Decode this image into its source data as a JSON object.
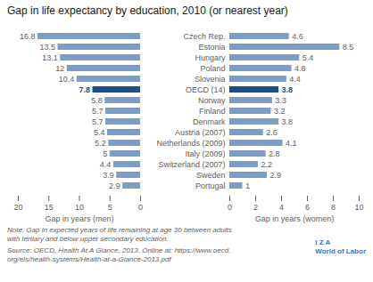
{
  "chart_data": [
    {
      "type": "bar",
      "orientation": "horizontal",
      "title": "Gap in life expectancy by education, 2010 (or nearest year)",
      "categories": [
        "Czech Rep.",
        "Estonia",
        "Hungary",
        "Poland",
        "Slovenia",
        "OECD (14)",
        "Norway",
        "Finland",
        "Denmark",
        "Austria (2007)",
        "Netherlands (2009)",
        "Italy (2009)",
        "Switzerland (2007)",
        "Sweden",
        "Portugal"
      ],
      "values": [
        16.8,
        13.5,
        13.1,
        12.0,
        10.4,
        7.8,
        5.8,
        5.7,
        5.7,
        5.4,
        5.2,
        5.0,
        4.4,
        3.9,
        2.9
      ],
      "colors": [
        "#7b9dc6",
        "#7b9dc6",
        "#7b9dc6",
        "#7b9dc6",
        "#7b9dc6",
        "#1a4f8a",
        "#7b9dc6",
        "#7b9dc6",
        "#7b9dc6",
        "#7b9dc6",
        "#7b9dc6",
        "#7b9dc6",
        "#7b9dc6",
        "#7b9dc6",
        "#7b9dc6"
      ],
      "xlabel": "Gap in years (men)",
      "xlim": [
        20,
        0
      ],
      "xticks": [
        20,
        15,
        10,
        5,
        0
      ],
      "data_labels": true,
      "tick_labels": "x",
      "annotations": [
        "Note: Gap in expected years of life remaining at age 30 between adults\nwith tertiary and below upper secondary education.",
        "Source: OECD, Health At A Glance, 2013. Online at: https://www.oecd.\norg/els/health-systems/Health-at-a-Glance-2013.pdf",
        "I Z A",
        "World of Labor"
      ]
    },
    {
      "type": "bar",
      "orientation": "horizontal",
      "categories": [
        "Czech Rep.",
        "Estonia",
        "Hungary",
        "Poland",
        "Slovenia",
        "OECD (14)",
        "Norway",
        "Finland",
        "Denmark",
        "Austria (2007)",
        "Netherlands (2009)",
        "Italy (2009)",
        "Switzerland (2007)",
        "Sweden",
        "Portugal"
      ],
      "values": [
        4.6,
        8.5,
        5.4,
        4.8,
        4.4,
        3.8,
        3.3,
        3.2,
        3.8,
        2.6,
        4.1,
        2.8,
        2.2,
        2.9,
        1.0
      ],
      "colors": [
        "#7b9dc6",
        "#7b9dc6",
        "#7b9dc6",
        "#7b9dc6",
        "#7b9dc6",
        "#1a4f8a",
        "#7b9dc6",
        "#7b9dc6",
        "#7b9dc6",
        "#7b9dc6",
        "#7b9dc6",
        "#7b9dc6",
        "#7b9dc6",
        "#7b9dc6",
        "#7b9dc6"
      ],
      "xlabel": "Gap in years (women)",
      "xlim": [
        0,
        10
      ],
      "xticks": [
        0,
        2,
        4,
        6,
        8,
        10
      ],
      "data_labels": true
    }
  ]
}
